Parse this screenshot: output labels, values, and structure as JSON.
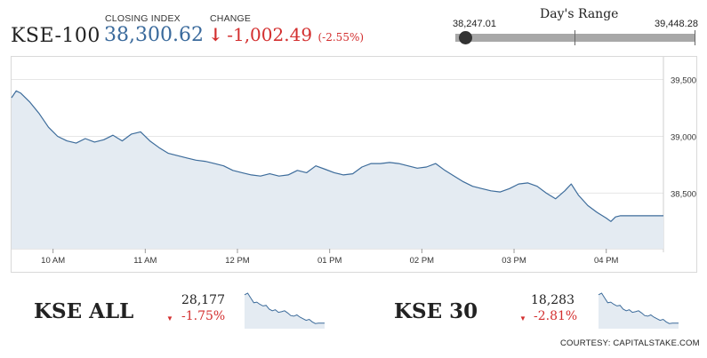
{
  "header": {
    "index_name": "KSE-100",
    "closing_label": "CLOSING INDEX",
    "closing_value": "38,300.62",
    "change_label": "CHANGE",
    "change_value": "-1,002.49",
    "change_pct": "(-2.55%)",
    "down_arrow": "↓"
  },
  "days_range": {
    "title": "Day's Range",
    "low": "38,247.01",
    "high": "39,448.28",
    "position": 0.04
  },
  "chart_data": {
    "type": "area",
    "title": "",
    "xlabel": "",
    "ylabel": "",
    "x_ticks": [
      "10 AM",
      "11 AM",
      "12 PM",
      "01 PM",
      "02 PM",
      "03 PM",
      "04 PM"
    ],
    "y_ticks": [
      "39,500",
      "39,000",
      "38,500"
    ],
    "ylim": [
      38010,
      39700
    ],
    "series": [
      {
        "values": [
          [
            9.55,
            39340
          ],
          [
            9.6,
            39400
          ],
          [
            9.65,
            39380
          ],
          [
            9.75,
            39300
          ],
          [
            9.85,
            39200
          ],
          [
            9.95,
            39080
          ],
          [
            10.05,
            39000
          ],
          [
            10.15,
            38960
          ],
          [
            10.25,
            38940
          ],
          [
            10.35,
            38980
          ],
          [
            10.45,
            38950
          ],
          [
            10.55,
            38970
          ],
          [
            10.65,
            39010
          ],
          [
            10.75,
            38960
          ],
          [
            10.85,
            39020
          ],
          [
            10.95,
            39040
          ],
          [
            11.05,
            38960
          ],
          [
            11.15,
            38900
          ],
          [
            11.25,
            38850
          ],
          [
            11.35,
            38830
          ],
          [
            11.45,
            38810
          ],
          [
            11.55,
            38790
          ],
          [
            11.65,
            38780
          ],
          [
            11.75,
            38760
          ],
          [
            11.85,
            38740
          ],
          [
            11.95,
            38700
          ],
          [
            12.05,
            38680
          ],
          [
            12.15,
            38660
          ],
          [
            12.25,
            38650
          ],
          [
            12.35,
            38670
          ],
          [
            12.45,
            38650
          ],
          [
            12.55,
            38660
          ],
          [
            12.65,
            38700
          ],
          [
            12.75,
            38680
          ],
          [
            12.85,
            38740
          ],
          [
            12.95,
            38710
          ],
          [
            13.05,
            38680
          ],
          [
            13.15,
            38660
          ],
          [
            13.25,
            38670
          ],
          [
            13.35,
            38730
          ],
          [
            13.45,
            38760
          ],
          [
            13.55,
            38760
          ],
          [
            13.65,
            38770
          ],
          [
            13.75,
            38760
          ],
          [
            13.85,
            38740
          ],
          [
            13.95,
            38720
          ],
          [
            14.05,
            38730
          ],
          [
            14.15,
            38760
          ],
          [
            14.25,
            38700
          ],
          [
            14.35,
            38650
          ],
          [
            14.45,
            38600
          ],
          [
            14.55,
            38560
          ],
          [
            14.65,
            38540
          ],
          [
            14.75,
            38520
          ],
          [
            14.85,
            38510
          ],
          [
            14.95,
            38540
          ],
          [
            15.05,
            38580
          ],
          [
            15.15,
            38590
          ],
          [
            15.25,
            38560
          ],
          [
            15.35,
            38500
          ],
          [
            15.45,
            38450
          ],
          [
            15.55,
            38520
          ],
          [
            15.62,
            38580
          ],
          [
            15.7,
            38480
          ],
          [
            15.8,
            38390
          ],
          [
            15.9,
            38330
          ],
          [
            16.0,
            38280
          ],
          [
            16.05,
            38250
          ],
          [
            16.1,
            38290
          ],
          [
            16.15,
            38300
          ],
          [
            16.3,
            38300
          ],
          [
            16.5,
            38300
          ],
          [
            16.62,
            38300
          ]
        ]
      }
    ]
  },
  "summaries": [
    {
      "name": "KSE ALL",
      "value": "28,177",
      "change": "-1.75%",
      "arrow": "▼"
    },
    {
      "name": "KSE 30",
      "value": "18,283",
      "change": "-2.81%",
      "arrow": "▼"
    }
  ],
  "courtesy": "COURTESY: CAPITALSTAKE.COM",
  "colors": {
    "blue": "#3a6a9c",
    "red": "#d32f2f",
    "line": "#3d6c9b",
    "fill": "#e4ebf2"
  }
}
